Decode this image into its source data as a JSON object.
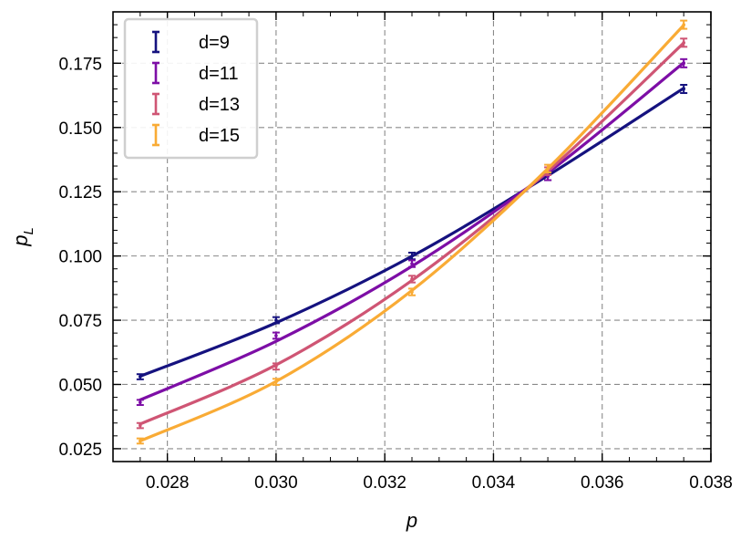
{
  "chart_data": {
    "type": "line",
    "xlabel": "p",
    "ylabel_main": "p",
    "ylabel_sub": "L",
    "xlim": [
      0.027,
      0.038
    ],
    "ylim": [
      0.02,
      0.195
    ],
    "xticks": [
      0.028,
      0.03,
      0.032,
      0.034,
      0.036,
      0.038
    ],
    "xtick_labels": [
      "0.028",
      "0.030",
      "0.032",
      "0.034",
      "0.036",
      "0.038"
    ],
    "yticks": [
      0.025,
      0.05,
      0.075,
      0.1,
      0.125,
      0.15,
      0.175
    ],
    "ytick_labels": [
      "0.025",
      "0.050",
      "0.075",
      "0.100",
      "0.125",
      "0.150",
      "0.175"
    ],
    "grid": true,
    "legend_position": "top-left",
    "x": [
      0.0275,
      0.03,
      0.0325,
      0.035,
      0.0375
    ],
    "series": [
      {
        "name": "d=9",
        "color": "#15127f",
        "values": [
          0.053,
          0.075,
          0.1,
          0.131,
          0.165
        ],
        "errors": [
          0.001,
          0.0012,
          0.0013,
          0.0015,
          0.0016
        ],
        "fit": [
          [
            0.0275,
            0.0532
          ],
          [
            0.03,
            0.074
          ],
          [
            0.0325,
            0.0999
          ],
          [
            0.035,
            0.1313
          ],
          [
            0.0375,
            0.1653
          ]
        ]
      },
      {
        "name": "d=11",
        "color": "#7d0ea6",
        "values": [
          0.043,
          0.069,
          0.097,
          0.131,
          0.175
        ],
        "errors": [
          0.001,
          0.0012,
          0.0013,
          0.0015,
          0.0016
        ],
        "fit": [
          [
            0.0275,
            0.044
          ],
          [
            0.03,
            0.0668
          ],
          [
            0.0325,
            0.096
          ],
          [
            0.035,
            0.1324
          ],
          [
            0.0375,
            0.1752
          ]
        ]
      },
      {
        "name": "d=13",
        "color": "#cf5574",
        "values": [
          0.034,
          0.057,
          0.091,
          0.133,
          0.183
        ],
        "errors": [
          0.001,
          0.0012,
          0.0013,
          0.0015,
          0.0016
        ],
        "fit": [
          [
            0.0275,
            0.0346
          ],
          [
            0.03,
            0.0576
          ],
          [
            0.0325,
            0.0905
          ],
          [
            0.035,
            0.133
          ],
          [
            0.0375,
            0.1829
          ]
        ]
      },
      {
        "name": "d=15",
        "color": "#f9ab35",
        "values": [
          0.028,
          0.051,
          0.086,
          0.134,
          0.19
        ],
        "errors": [
          0.001,
          0.0012,
          0.0013,
          0.0015,
          0.0016
        ],
        "fit": [
          [
            0.0275,
            0.028
          ],
          [
            0.03,
            0.0512
          ],
          [
            0.0325,
            0.0866
          ],
          [
            0.035,
            0.134
          ],
          [
            0.0375,
            0.1898
          ]
        ]
      }
    ]
  }
}
